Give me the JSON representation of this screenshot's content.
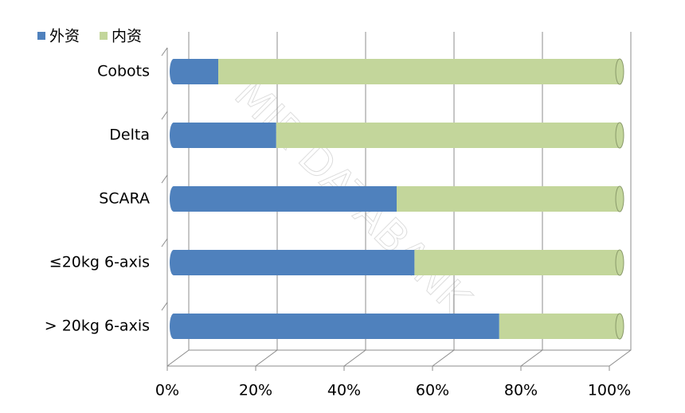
{
  "chart_data": {
    "type": "stacked_bar_horizontal_100",
    "watermark": "MIR DATABANK",
    "categories": [
      "Cobots",
      "Delta",
      "SCARA",
      "≤20kg 6-axis",
      "> 20kg 6-axis"
    ],
    "series": [
      {
        "name": "外资",
        "color": "#4f81bd",
        "values": [
          10,
          23,
          50,
          54,
          73
        ]
      },
      {
        "name": "内资",
        "color": "#c3d69b",
        "values": [
          90,
          77,
          50,
          46,
          27
        ]
      }
    ],
    "xlim": [
      0,
      100
    ],
    "xticks": [
      {
        "value": 0,
        "label": "0%"
      },
      {
        "value": 20,
        "label": "20%"
      },
      {
        "value": 40,
        "label": "40%"
      },
      {
        "value": 60,
        "label": "60%"
      },
      {
        "value": 80,
        "label": "80%"
      },
      {
        "value": 100,
        "label": "100%"
      }
    ],
    "grid": true,
    "legend": "top-left"
  }
}
